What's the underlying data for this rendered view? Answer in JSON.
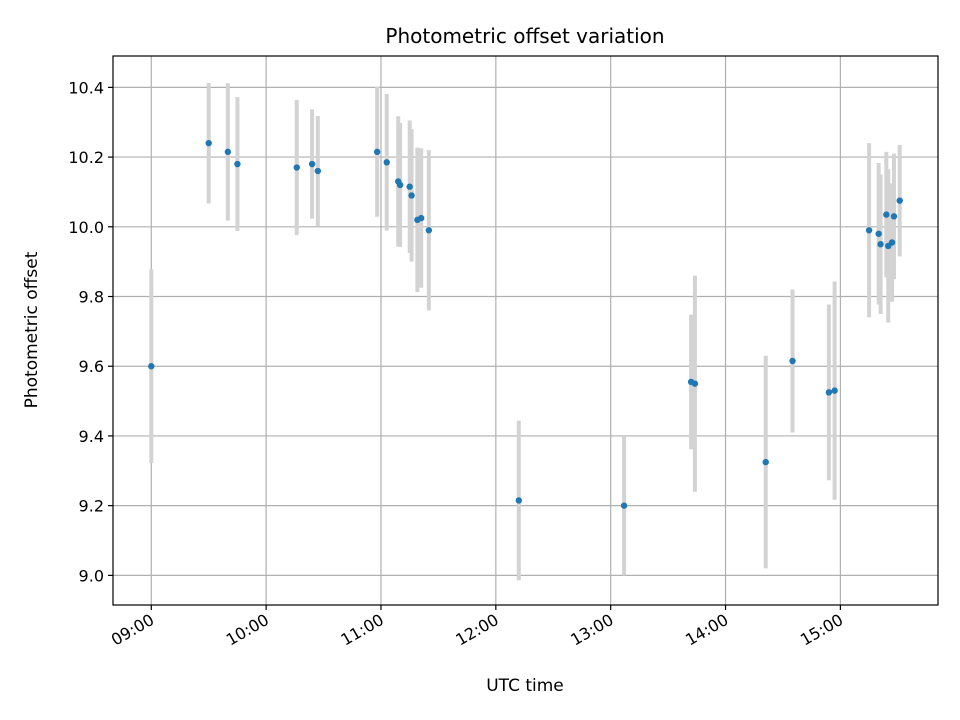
{
  "chart_data": {
    "type": "scatter",
    "title": "Photometric offset variation",
    "xlabel": "UTC time",
    "ylabel": "Photometric offset",
    "x_ticks": [
      "09:00",
      "10:00",
      "11:00",
      "12:00",
      "13:00",
      "14:00",
      "15:00"
    ],
    "y_ticks": [
      "9.0",
      "9.2",
      "9.4",
      "9.6",
      "9.8",
      "10.0",
      "10.2",
      "10.4"
    ],
    "xlim": [
      "08:40",
      "15:51"
    ],
    "ylim": [
      8.915,
      10.49
    ],
    "grid": true,
    "colors": {
      "point": "#1f77b4",
      "errorbar": "#d3d3d3",
      "grid": "#b0b0b0"
    },
    "points": [
      {
        "t": "09:00",
        "y": 9.6,
        "err": 0.278
      },
      {
        "t": "09:30",
        "y": 10.24,
        "err": 0.173
      },
      {
        "t": "09:40",
        "y": 10.215,
        "err": 0.197
      },
      {
        "t": "09:45",
        "y": 10.18,
        "err": 0.192
      },
      {
        "t": "10:16",
        "y": 10.17,
        "err": 0.194
      },
      {
        "t": "10:24",
        "y": 10.18,
        "err": 0.157
      },
      {
        "t": "10:27",
        "y": 10.16,
        "err": 0.158
      },
      {
        "t": "10:58",
        "y": 10.215,
        "err": 0.186
      },
      {
        "t": "11:03",
        "y": 10.185,
        "err": 0.196
      },
      {
        "t": "11:09",
        "y": 10.13,
        "err": 0.187
      },
      {
        "t": "11:10",
        "y": 10.12,
        "err": 0.178
      },
      {
        "t": "11:15",
        "y": 10.115,
        "err": 0.19
      },
      {
        "t": "11:16",
        "y": 10.09,
        "err": 0.19
      },
      {
        "t": "11:19",
        "y": 10.02,
        "err": 0.207
      },
      {
        "t": "11:21",
        "y": 10.025,
        "err": 0.2
      },
      {
        "t": "11:25",
        "y": 9.99,
        "err": 0.23
      },
      {
        "t": "12:12",
        "y": 9.215,
        "err": 0.229
      },
      {
        "t": "13:07",
        "y": 9.2,
        "err": 0.2
      },
      {
        "t": "13:42",
        "y": 9.555,
        "err": 0.193
      },
      {
        "t": "13:44",
        "y": 9.55,
        "err": 0.31
      },
      {
        "t": "14:21",
        "y": 9.325,
        "err": 0.305
      },
      {
        "t": "14:35",
        "y": 9.615,
        "err": 0.205
      },
      {
        "t": "14:54",
        "y": 9.525,
        "err": 0.252
      },
      {
        "t": "14:57",
        "y": 9.53,
        "err": 0.313
      },
      {
        "t": "15:15",
        "y": 9.99,
        "err": 0.25
      },
      {
        "t": "15:20",
        "y": 9.98,
        "err": 0.203
      },
      {
        "t": "15:21",
        "y": 9.95,
        "err": 0.2
      },
      {
        "t": "15:24",
        "y": 10.035,
        "err": 0.18
      },
      {
        "t": "15:25",
        "y": 9.945,
        "err": 0.22
      },
      {
        "t": "15:27",
        "y": 9.955,
        "err": 0.17
      },
      {
        "t": "15:28",
        "y": 10.03,
        "err": 0.18
      },
      {
        "t": "15:31",
        "y": 10.075,
        "err": 0.16
      }
    ]
  }
}
